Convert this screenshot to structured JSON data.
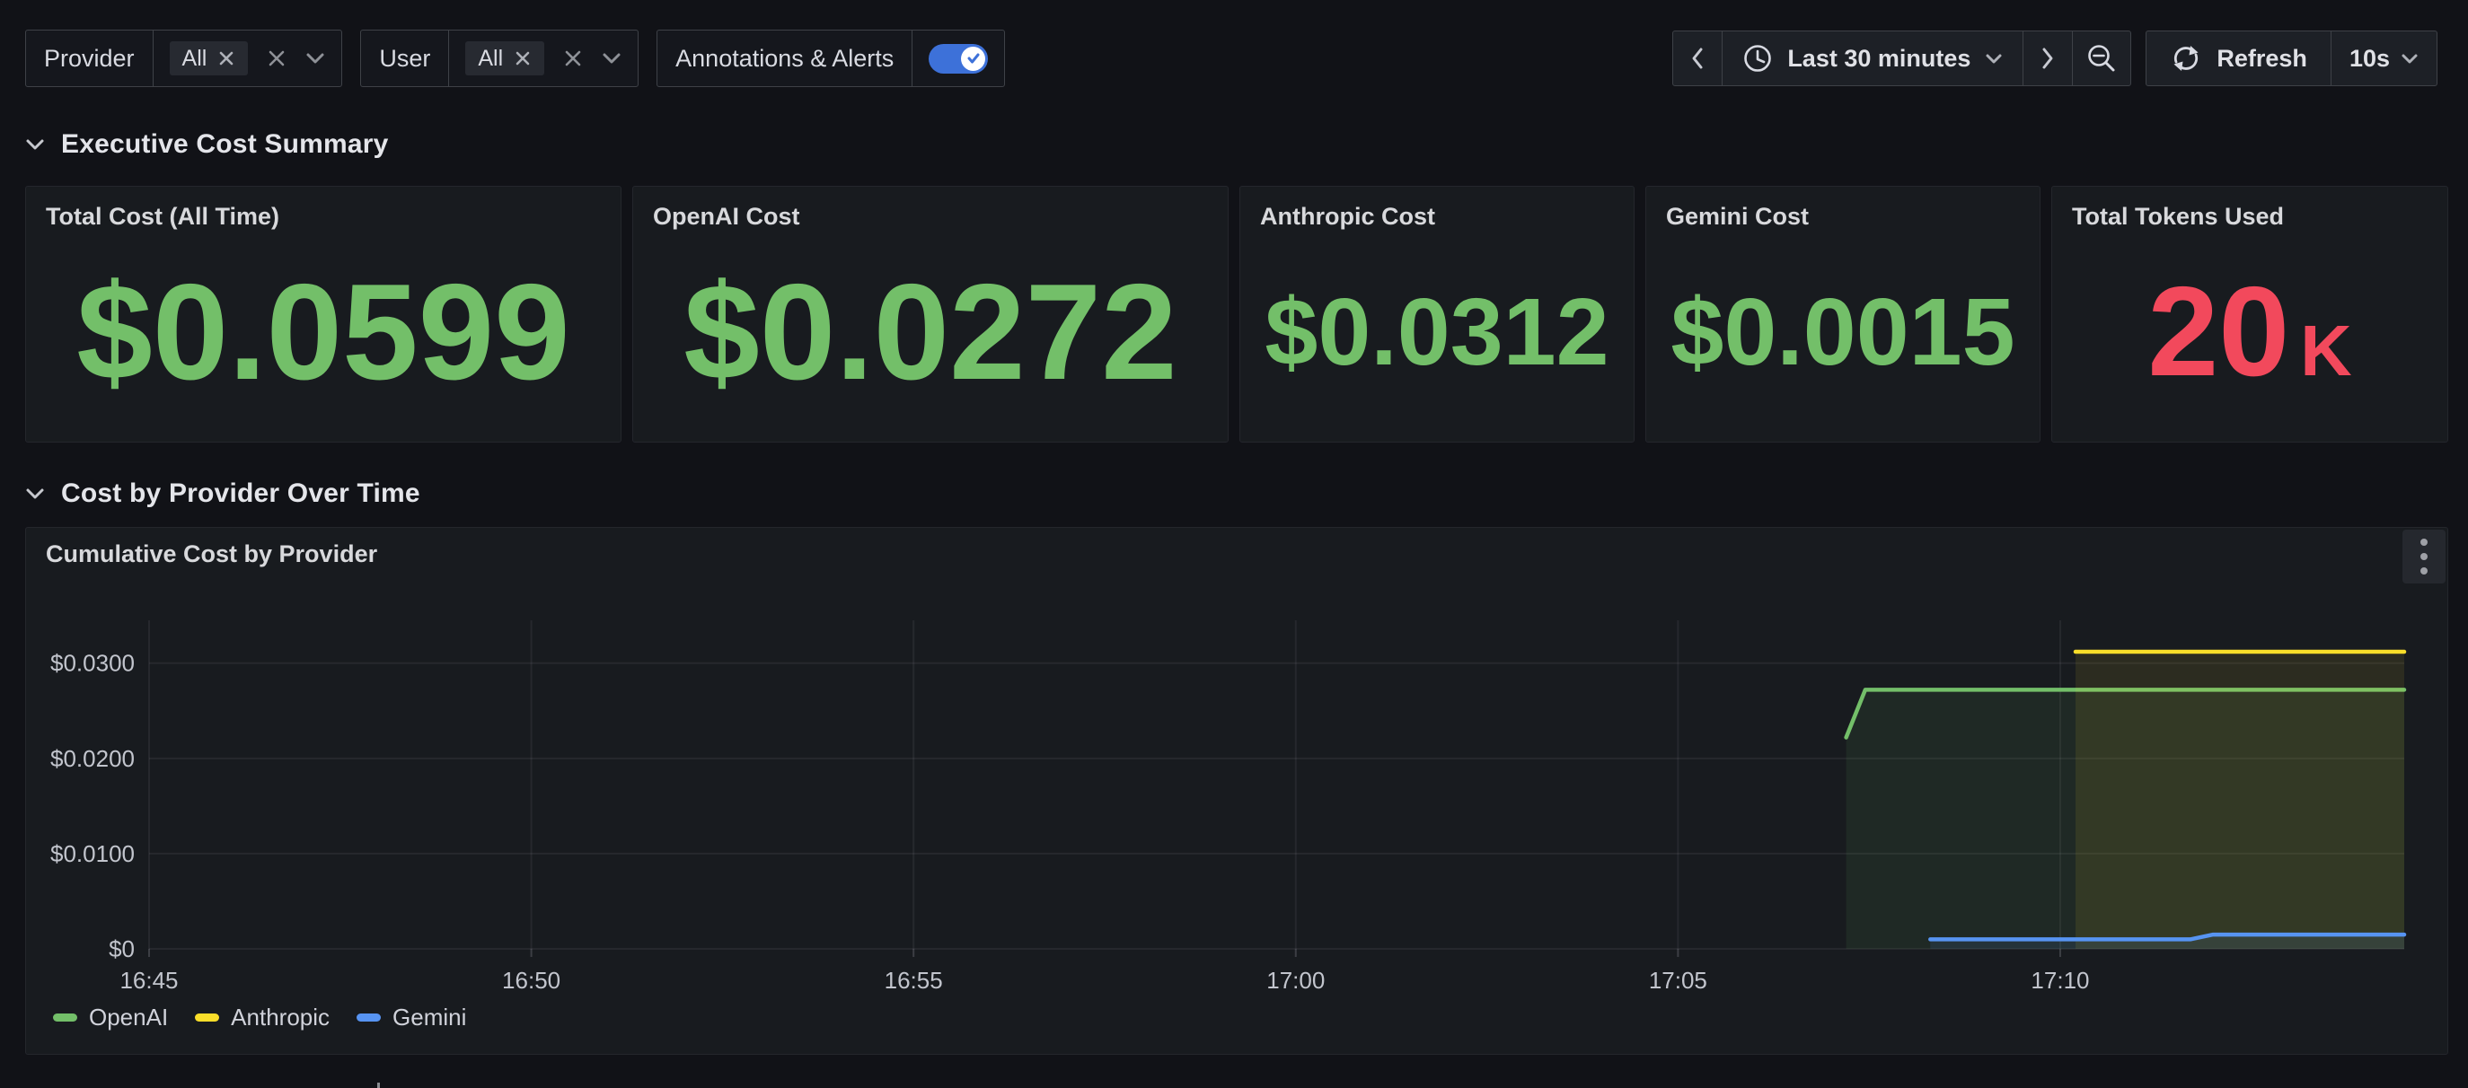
{
  "colors": {
    "green": "#73BF69",
    "red": "#F2495C",
    "yellow": "#FADE2A",
    "blue": "#5794F2",
    "accent_blue": "#3D71D9"
  },
  "icons": {
    "clock": "🕐",
    "chevron-down": "⌄",
    "chevron-left": "‹",
    "chevron-right": "›",
    "zoom-out": "⊖",
    "refresh": "⟳",
    "close": "✕",
    "kebab": "⋮",
    "check": "✓"
  },
  "toolbar": {
    "filters": [
      {
        "label": "Provider",
        "chip": "All"
      },
      {
        "label": "User",
        "chip": "All"
      }
    ],
    "annotations": {
      "label": "Annotations & Alerts",
      "enabled": true
    },
    "time_picker": {
      "range_label": "Last 30 minutes"
    },
    "refresh": {
      "label": "Refresh",
      "interval": "10s"
    }
  },
  "sections": [
    {
      "title": "Executive Cost Summary"
    },
    {
      "title": "Cost by Provider Over Time"
    }
  ],
  "stats": [
    {
      "title": "Total Cost (All Time)",
      "value": "$0.0599",
      "color": "#73BF69"
    },
    {
      "title": "OpenAI Cost",
      "value": "$0.0272",
      "color": "#73BF69"
    },
    {
      "title": "Anthropic Cost",
      "value": "$0.0312",
      "color": "#73BF69"
    },
    {
      "title": "Gemini Cost",
      "value": "$0.0015",
      "color": "#73BF69"
    },
    {
      "title": "Total Tokens Used",
      "value": "20",
      "suffix": "K",
      "color": "#F2495C"
    }
  ],
  "chart_panel": {
    "title": "Cumulative Cost by Provider"
  },
  "chart_data": {
    "type": "line",
    "title": "Cumulative Cost by Provider",
    "x_axis": {
      "unit": "time of day",
      "note": "t is minutes after 16:45",
      "range": [
        0,
        29.5
      ],
      "ticks": [
        {
          "t": 0,
          "label": "16:45"
        },
        {
          "t": 5,
          "label": "16:50"
        },
        {
          "t": 10,
          "label": "16:55"
        },
        {
          "t": 15,
          "label": "17:00"
        },
        {
          "t": 20,
          "label": "17:05"
        },
        {
          "t": 25,
          "label": "17:10"
        }
      ]
    },
    "y_axis": {
      "unit": "USD",
      "range": [
        0,
        0.0345
      ],
      "ticks": [
        {
          "v": 0,
          "label": "$0"
        },
        {
          "v": 0.01,
          "label": "$0.0100"
        },
        {
          "v": 0.02,
          "label": "$0.0200"
        },
        {
          "v": 0.03,
          "label": "$0.0300"
        }
      ]
    },
    "grid": true,
    "legend_position": "bottom-left",
    "series": [
      {
        "name": "OpenAI",
        "color": "#73BF69",
        "fill_opacity": 0.09,
        "points": [
          [
            22.2,
            0.0222
          ],
          [
            22.45,
            0.0272
          ],
          [
            29.5,
            0.0272
          ]
        ]
      },
      {
        "name": "Anthropic",
        "color": "#FADE2A",
        "fill_opacity": 0.09,
        "points": [
          [
            25.2,
            0.0312
          ],
          [
            29.5,
            0.0312
          ]
        ]
      },
      {
        "name": "Gemini",
        "color": "#5794F2",
        "fill_opacity": 0.1,
        "points": [
          [
            23.3,
            0.001
          ],
          [
            26.7,
            0.001
          ],
          [
            27.0,
            0.0015
          ],
          [
            29.5,
            0.0015
          ]
        ]
      }
    ]
  }
}
